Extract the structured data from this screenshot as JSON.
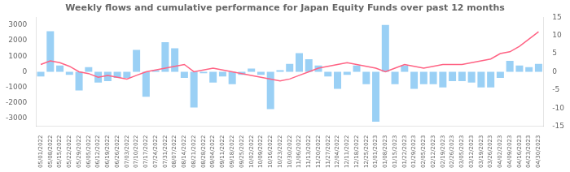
{
  "chart_data": {
    "type": "bar",
    "title": "Weekly flows and cumulative performance for Japan Equity Funds over past 12 months",
    "categories": [
      "05/01/2022",
      "05/08/2022",
      "05/15/2022",
      "05/22/2022",
      "05/29/2022",
      "06/05/2022",
      "06/12/2022",
      "06/19/2022",
      "06/26/2022",
      "07/03/2022",
      "07/10/2022",
      "07/17/2022",
      "07/24/2022",
      "07/31/2022",
      "08/07/2022",
      "08/14/2022",
      "08/21/2022",
      "08/28/2022",
      "09/04/2022",
      "09/11/2022",
      "09/18/2022",
      "09/25/2022",
      "10/02/2022",
      "10/09/2022",
      "10/16/2022",
      "10/23/2022",
      "10/30/2022",
      "11/06/2022",
      "11/13/2022",
      "11/20/2022",
      "11/27/2022",
      "12/04/2022",
      "12/11/2022",
      "12/18/2022",
      "12/25/2022",
      "01/01/2023",
      "01/08/2023",
      "01/15/2023",
      "01/22/2023",
      "01/29/2023",
      "02/05/2023",
      "02/12/2023",
      "02/19/2023",
      "02/26/2023",
      "03/05/2023",
      "03/12/2023",
      "03/19/2023",
      "03/26/2023",
      "04/02/2023",
      "04/09/2023",
      "04/16/2023",
      "04/23/2023",
      "04/30/2023"
    ],
    "series": [
      {
        "type": "bar",
        "values": [
          -300,
          2600,
          400,
          -200,
          -1200,
          300,
          -700,
          -600,
          -400,
          -400,
          1400,
          -1600,
          100,
          1900,
          1500,
          -400,
          -2300,
          -100,
          -700,
          -300,
          -800,
          -200,
          200,
          -200,
          -2400,
          100,
          500,
          1200,
          800,
          400,
          -300,
          -1100,
          -200,
          400,
          -800,
          -3200,
          3000,
          -800,
          400,
          -1100,
          -800,
          -800,
          -1000,
          -600,
          -600,
          -700,
          -1000,
          -1000,
          -400,
          700,
          400,
          300,
          500
        ]
      },
      {
        "type": "line",
        "axis": "y2",
        "values": [
          2,
          3,
          2.5,
          1.5,
          0,
          -0.5,
          -1.5,
          -1,
          -1.5,
          -2,
          -1,
          0,
          0.5,
          1,
          1.5,
          2,
          0,
          0.5,
          1,
          0.5,
          0,
          -0.5,
          -1,
          -1.5,
          -2,
          -2.5,
          -2,
          -1,
          0,
          1,
          1.5,
          2,
          2.5,
          2,
          1.5,
          1,
          0,
          1,
          2,
          1.5,
          1,
          1.5,
          2,
          2,
          2,
          2.5,
          3,
          3.5,
          5,
          5.5,
          7,
          9,
          11
        ]
      }
    ],
    "ylim": [
      -3500,
      3500
    ],
    "yticks": [
      -3000,
      -2000,
      -1000,
      0,
      1000,
      2000,
      3000
    ],
    "y2lim": [
      -15,
      15
    ],
    "y2ticks": [
      -15,
      -10,
      -5,
      0,
      5,
      10,
      15
    ],
    "grid": false
  }
}
